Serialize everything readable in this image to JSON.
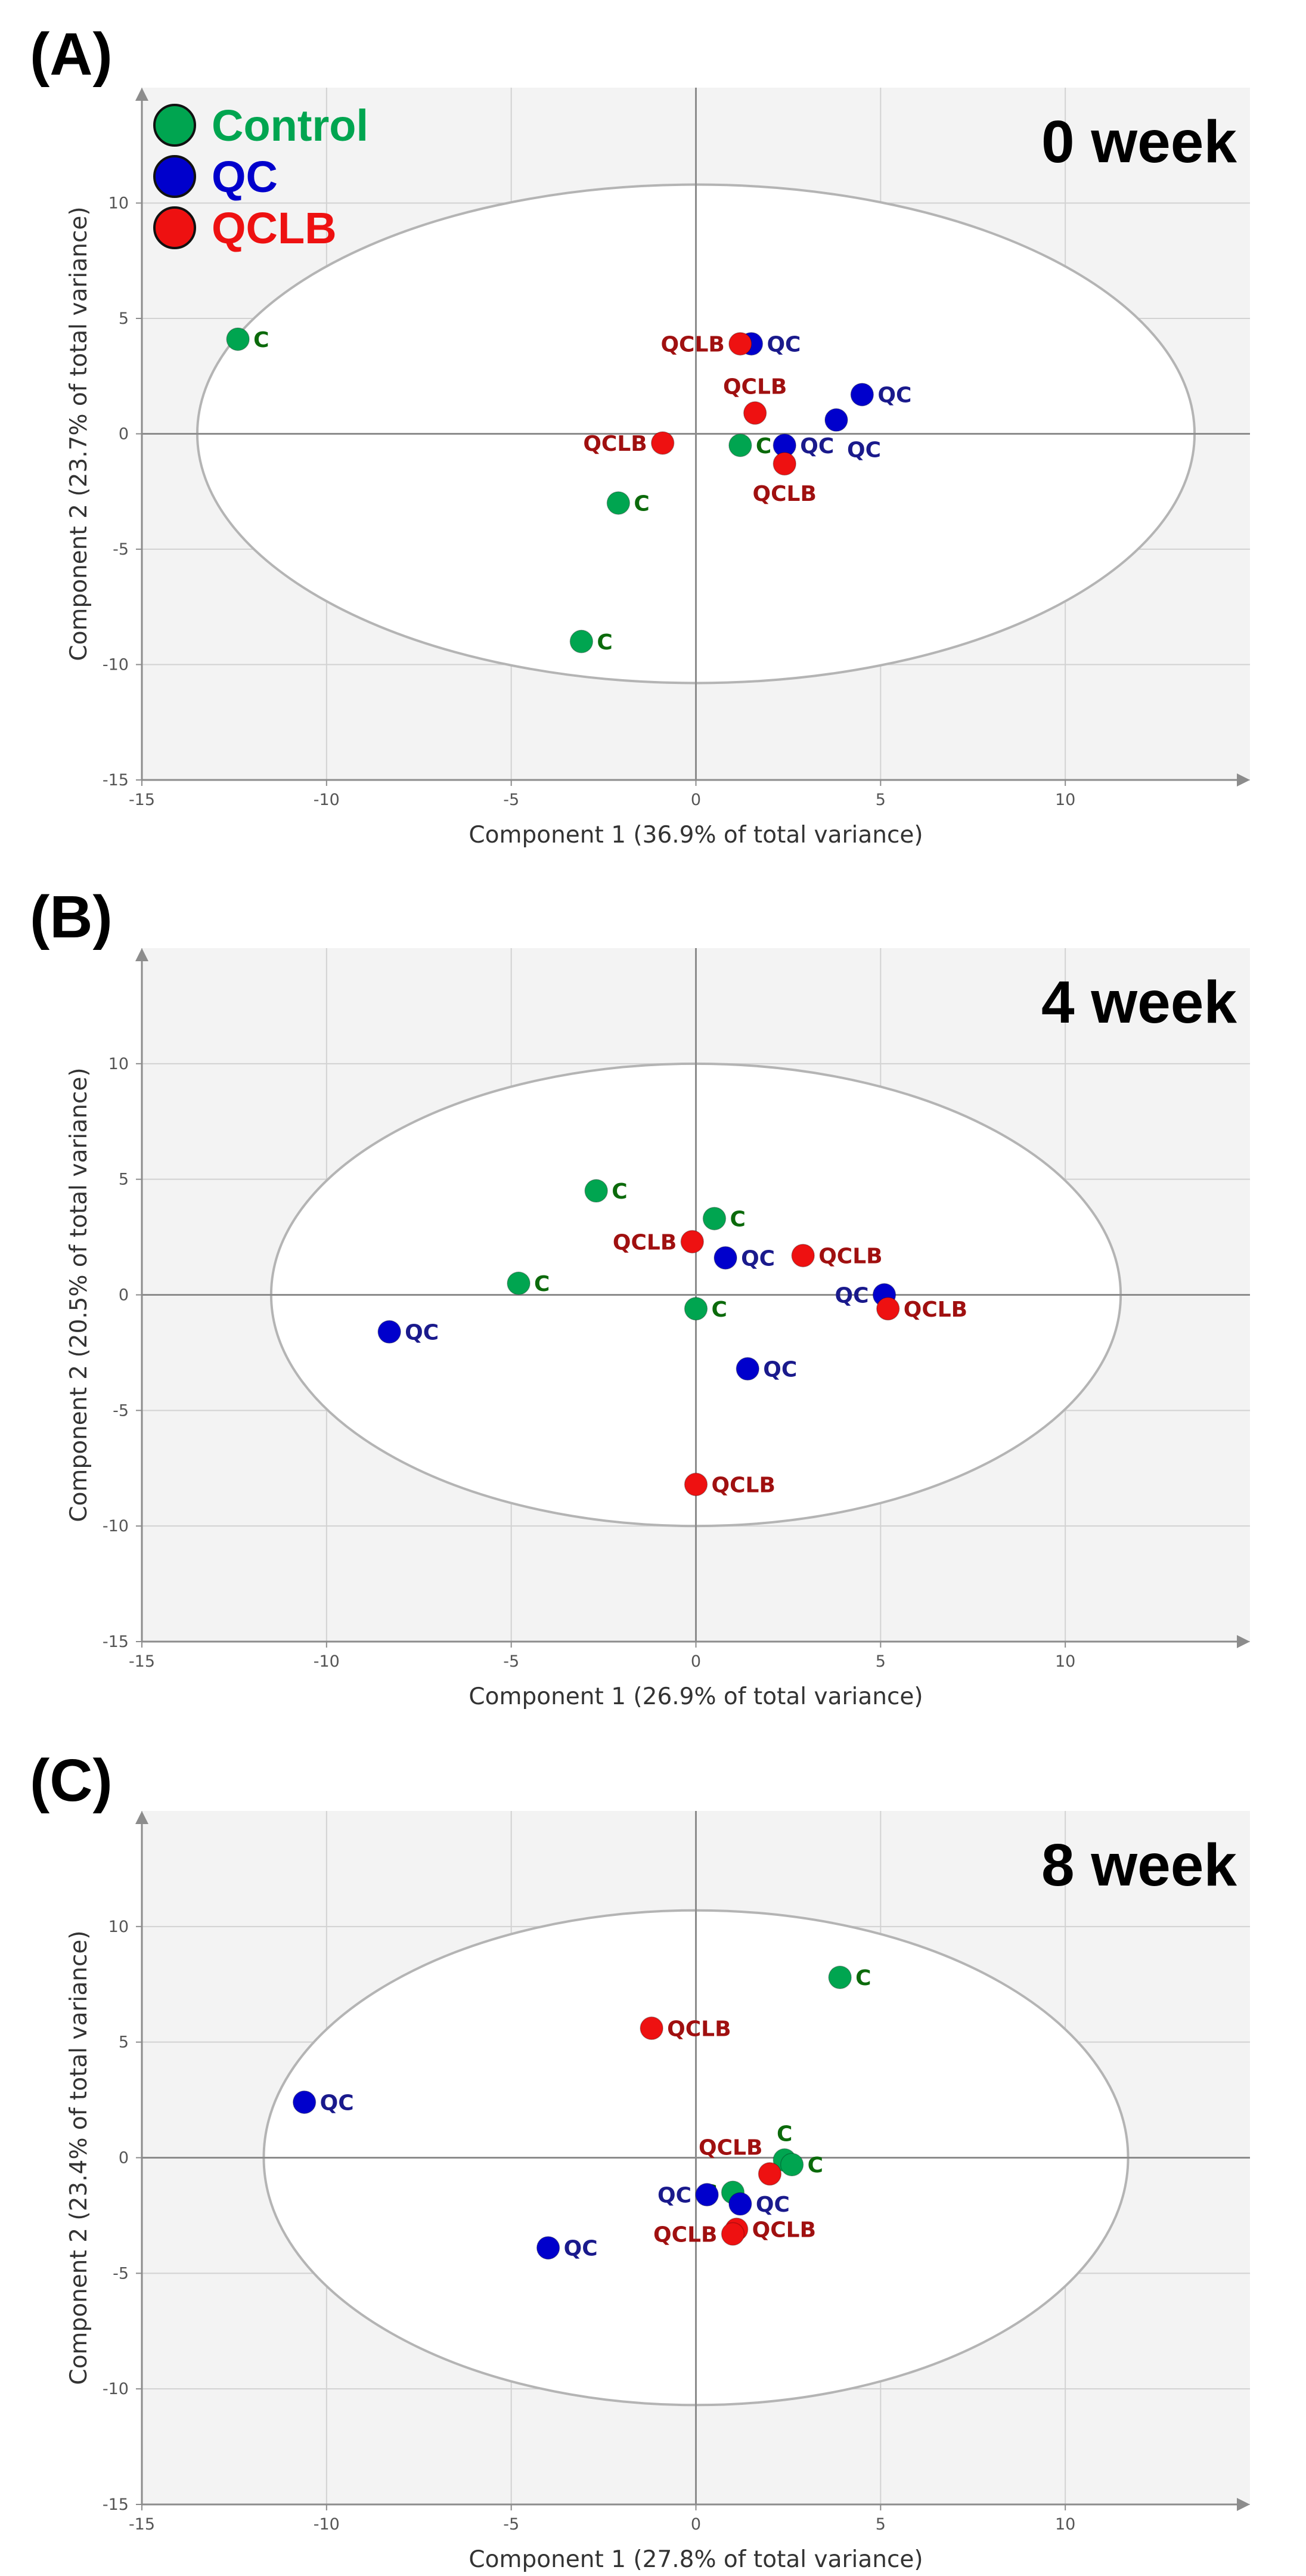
{
  "legend": [
    {
      "name": "Control",
      "color": "#00a550"
    },
    {
      "name": "QC",
      "color": "#0000cc"
    },
    {
      "name": "QCLB",
      "color": "#ee1111"
    }
  ],
  "label_colors": {
    "C": "#0b6a0b",
    "QC": "#1a1a8c",
    "QCLB": "#a01010"
  },
  "chart_data": [
    {
      "type": "scatter",
      "panel_letter": "(A)",
      "week_label": "0 week",
      "xlabel": "Component 1 (36.9% of total variance)",
      "ylabel": "Component 2 (23.7% of total variance)",
      "xlim": [
        -15,
        15
      ],
      "ylim": [
        -15,
        15
      ],
      "xticks": [
        -15,
        -10,
        -5,
        0,
        5,
        10
      ],
      "yticks": [
        -15,
        -10,
        -5,
        0,
        5,
        10
      ],
      "grid": true,
      "ellipse": {
        "cx": 0,
        "cy": 0,
        "rx": 13.5,
        "ry": 10.8
      },
      "points": [
        {
          "group": "Control",
          "label": "C",
          "x": -12.4,
          "y": 4.1,
          "label_side": "right"
        },
        {
          "group": "Control",
          "label": "C",
          "x": -2.1,
          "y": -3.0,
          "label_side": "right"
        },
        {
          "group": "Control",
          "label": "C",
          "x": -3.1,
          "y": -9.0,
          "label_side": "right"
        },
        {
          "group": "Control",
          "label": "C",
          "x": 1.2,
          "y": -0.5,
          "label_side": "right"
        },
        {
          "group": "QC",
          "label": "QC",
          "x": 1.5,
          "y": 3.9,
          "label_side": "right"
        },
        {
          "group": "QC",
          "label": "QC",
          "x": 4.5,
          "y": 1.7,
          "label_side": "right"
        },
        {
          "group": "QC",
          "label": "QC",
          "x": 2.4,
          "y": -0.5,
          "label_side": "right"
        },
        {
          "group": "QC",
          "label": "QC",
          "x": 3.8,
          "y": 0.6,
          "label_side": "below-right"
        },
        {
          "group": "QCLB",
          "label": "QCLB",
          "x": 1.2,
          "y": 3.9,
          "label_side": "left"
        },
        {
          "group": "QCLB",
          "label": "QCLB",
          "x": 1.6,
          "y": 0.9,
          "label_side": "above"
        },
        {
          "group": "QCLB",
          "label": "QCLB",
          "x": -0.9,
          "y": -0.4,
          "label_side": "left"
        },
        {
          "group": "QCLB",
          "label": "QCLB",
          "x": 2.4,
          "y": -1.3,
          "label_side": "below"
        }
      ]
    },
    {
      "type": "scatter",
      "panel_letter": "(B)",
      "week_label": "4 week",
      "xlabel": "Component 1 (26.9% of total variance)",
      "ylabel": "Component 2 (20.5% of total variance)",
      "xlim": [
        -15,
        15
      ],
      "ylim": [
        -15,
        15
      ],
      "xticks": [
        -15,
        -10,
        -5,
        0,
        5,
        10
      ],
      "yticks": [
        -15,
        -10,
        -5,
        0,
        5,
        10
      ],
      "grid": true,
      "ellipse": {
        "cx": 0,
        "cy": 0,
        "rx": 11.5,
        "ry": 10.0
      },
      "points": [
        {
          "group": "Control",
          "label": "C",
          "x": -2.7,
          "y": 4.5,
          "label_side": "right"
        },
        {
          "group": "Control",
          "label": "C",
          "x": 0.5,
          "y": 3.3,
          "label_side": "right"
        },
        {
          "group": "Control",
          "label": "C",
          "x": -4.8,
          "y": 0.5,
          "label_side": "right"
        },
        {
          "group": "Control",
          "label": "C",
          "x": 0.0,
          "y": -0.6,
          "label_side": "right"
        },
        {
          "group": "QC",
          "label": "QC",
          "x": -8.3,
          "y": -1.6,
          "label_side": "right"
        },
        {
          "group": "QC",
          "label": "QC",
          "x": 0.8,
          "y": 1.6,
          "label_side": "right"
        },
        {
          "group": "QC",
          "label": "QC",
          "x": 1.4,
          "y": -3.2,
          "label_side": "right"
        },
        {
          "group": "QC",
          "label": "QC",
          "x": 5.1,
          "y": 0.0,
          "label_side": "left"
        },
        {
          "group": "QCLB",
          "label": "QCLB",
          "x": -0.1,
          "y": 2.3,
          "label_side": "left"
        },
        {
          "group": "QCLB",
          "label": "QCLB",
          "x": 2.9,
          "y": 1.7,
          "label_side": "right"
        },
        {
          "group": "QCLB",
          "label": "QCLB",
          "x": 5.2,
          "y": -0.6,
          "label_side": "right"
        },
        {
          "group": "QCLB",
          "label": "QCLB",
          "x": 0.0,
          "y": -8.2,
          "label_side": "right"
        }
      ]
    },
    {
      "type": "scatter",
      "panel_letter": "(C)",
      "week_label": "8 week",
      "xlabel": "Component 1 (27.8% of total variance)",
      "ylabel": "Component 2 (23.4% of total variance)",
      "xlim": [
        -15,
        15
      ],
      "ylim": [
        -15,
        15
      ],
      "xticks": [
        -15,
        -10,
        -5,
        0,
        5,
        10
      ],
      "yticks": [
        -15,
        -10,
        -5,
        0,
        5,
        10
      ],
      "grid": true,
      "ellipse": {
        "cx": 0,
        "cy": 0,
        "rx": 11.7,
        "ry": 10.7
      },
      "points": [
        {
          "group": "Control",
          "label": "C",
          "x": 3.9,
          "y": 7.8,
          "label_side": "right"
        },
        {
          "group": "Control",
          "label": "C",
          "x": 2.4,
          "y": -0.1,
          "label_side": "above"
        },
        {
          "group": "Control",
          "label": "C",
          "x": 2.6,
          "y": -0.3,
          "label_side": "right"
        },
        {
          "group": "Control",
          "label": "C",
          "x": 1.0,
          "y": -1.5,
          "label_side": "left"
        },
        {
          "group": "QC",
          "label": "QC",
          "x": -10.6,
          "y": 2.4,
          "label_side": "right"
        },
        {
          "group": "QC",
          "label": "QC",
          "x": -4.0,
          "y": -3.9,
          "label_side": "right"
        },
        {
          "group": "QC",
          "label": "QC",
          "x": 0.3,
          "y": -1.6,
          "label_side": "left"
        },
        {
          "group": "QC",
          "label": "QC",
          "x": 1.2,
          "y": -2.0,
          "label_side": "right"
        },
        {
          "group": "QCLB",
          "label": "QCLB",
          "x": -1.2,
          "y": 5.6,
          "label_side": "right"
        },
        {
          "group": "QCLB",
          "label": "QCLB",
          "x": 2.0,
          "y": -0.7,
          "label_side": "above-left"
        },
        {
          "group": "QCLB",
          "label": "QCLB",
          "x": 1.1,
          "y": -3.1,
          "label_side": "right"
        },
        {
          "group": "QCLB",
          "label": "QCLB",
          "x": 1.0,
          "y": -3.3,
          "label_side": "left"
        }
      ]
    }
  ]
}
